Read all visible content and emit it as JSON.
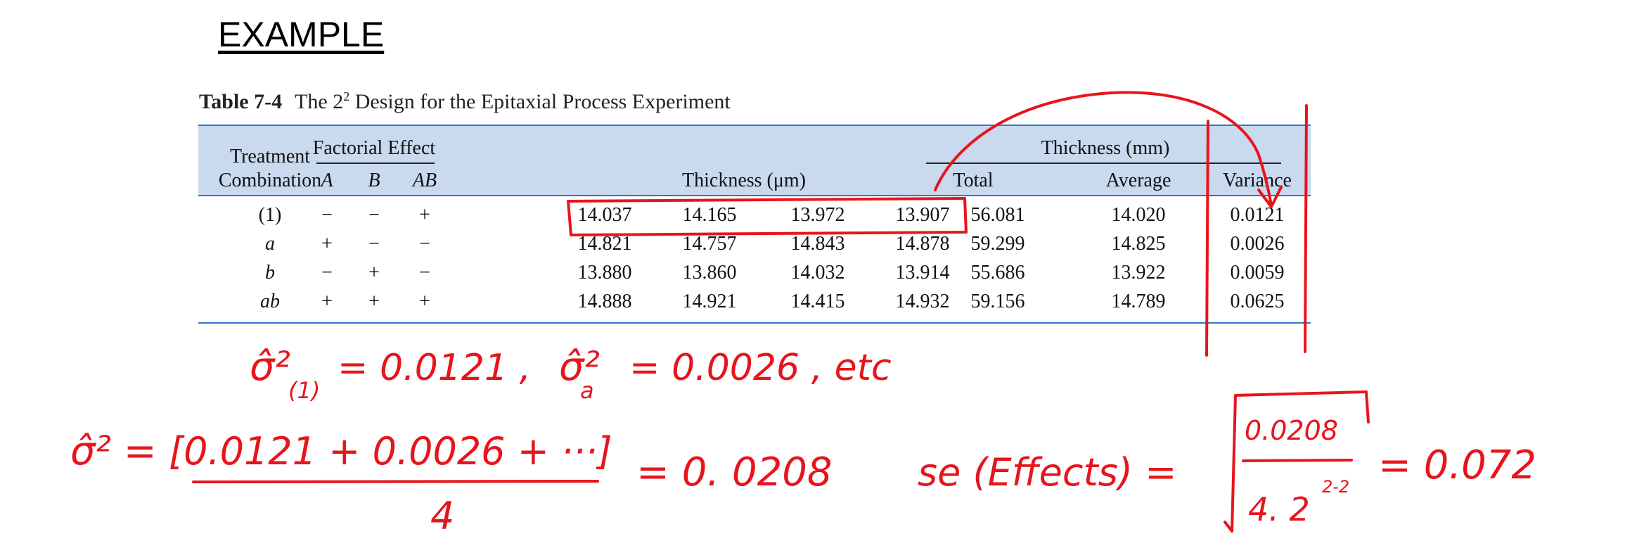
{
  "heading": "EXAMPLE",
  "caption": {
    "label": "Table 7-4",
    "title_pre": "The 2",
    "title_sup": "2",
    "title_post": " Design for the Epitaxial Process Experiment"
  },
  "table": {
    "headers": {
      "treatment_line1": "Treatment",
      "treatment_line2": "Combination",
      "factorial_effect": "Factorial Effect",
      "factor_a": "A",
      "factor_b": "B",
      "factor_ab": "AB",
      "thickness_um": "Thickness (μm)",
      "thickness_mm": "Thickness (mm)",
      "total": "Total",
      "average": "Average",
      "variance": "Variance"
    },
    "rows": [
      {
        "tc": "(1)",
        "A": "−",
        "B": "−",
        "AB": "+",
        "t1": "14.037",
        "t2": "14.165",
        "t3": "13.972",
        "t4": "13.907",
        "total": "56.081",
        "avg": "14.020",
        "var": "0.0121"
      },
      {
        "tc": "a",
        "A": "+",
        "B": "−",
        "AB": "−",
        "t1": "14.821",
        "t2": "14.757",
        "t3": "14.843",
        "t4": "14.878",
        "total": "59.299",
        "avg": "14.825",
        "var": "0.0026"
      },
      {
        "tc": "b",
        "A": "−",
        "B": "+",
        "AB": "−",
        "t1": "13.880",
        "t2": "13.860",
        "t3": "14.032",
        "t4": "13.914",
        "total": "55.686",
        "avg": "13.922",
        "var": "0.0059"
      },
      {
        "tc": "ab",
        "A": "+",
        "B": "+",
        "AB": "+",
        "t1": "14.888",
        "t2": "14.921",
        "t3": "14.415",
        "t4": "14.932",
        "total": "59.156",
        "avg": "14.789",
        "var": "0.0625"
      }
    ]
  },
  "annotations": {
    "color": "#e8141c",
    "line1_sigma": "σ̂²",
    "line1_sub1": "(1)",
    "line1_eq1": "= 0.0121 ,",
    "line1_sigma2": "σ̂²",
    "line1_sub2": "a",
    "line1_eq2": "= 0.0026 , etc",
    "line2_sigma": "σ̂² =",
    "line2_numerator": "[0.0121 + 0.0026 + ···]",
    "line2_denominator": "4",
    "line2_result": "= 0. 0208",
    "se_label": "se (Effects) =",
    "se_numerator": "0.0208",
    "se_denominator": "4. 2",
    "se_exponent": "2-2",
    "se_result": "= 0.072"
  }
}
